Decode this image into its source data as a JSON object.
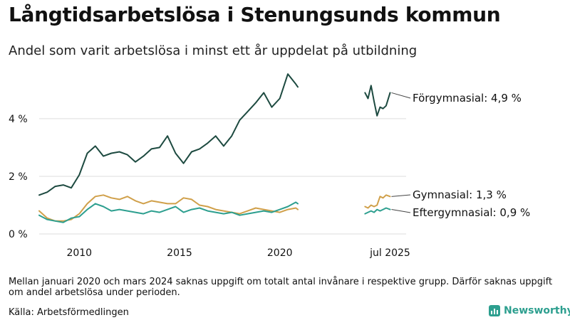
{
  "title": "Långtidsarbetslösa i Stenungsunds kommun",
  "subtitle": "Andel som varit arbetslösa i minst ett år uppdelat på utbildning",
  "note": "Mellan januari 2020 och mars 2024 saknas uppgift om totalt antal invånare i respektive grupp. Därför saknas uppgift om andel arbetslösa under perioden.",
  "source": "Källa: Arbetsförmedlingen",
  "brand": "Newsworthy",
  "colors": {
    "forgymnasial": "#1d4a40",
    "gymnasial": "#d0a04a",
    "eftergymnasial": "#2d9f8f",
    "gridline": "#dddddd",
    "text": "#111111"
  },
  "chart_data": {
    "type": "line",
    "ylim": [
      0,
      5.7
    ],
    "yticks": [
      0,
      2,
      4
    ],
    "ytick_labels": [
      "0 %",
      "2 %",
      "4 %"
    ],
    "xlim": [
      2008.0,
      2026.3
    ],
    "xticks": [
      2010,
      2015,
      2020,
      2025.5
    ],
    "xtick_labels": [
      "2010",
      "2015",
      "2020",
      "jul 2025"
    ],
    "grid": "horizontal",
    "series": [
      {
        "name": "Förgymnasial",
        "label": "Förgymnasial: 4,9 %",
        "color": "#1d4a40",
        "segments": [
          {
            "x": [
              2008.0,
              2008.4,
              2008.8,
              2009.2,
              2009.6,
              2010.0,
              2010.4,
              2010.8,
              2011.2,
              2011.6,
              2012.0,
              2012.4,
              2012.8,
              2013.2,
              2013.6,
              2014.0,
              2014.4,
              2014.8,
              2015.2,
              2015.6,
              2016.0,
              2016.4,
              2016.8,
              2017.2,
              2017.6,
              2018.0,
              2018.4,
              2018.8,
              2019.2,
              2019.6,
              2020.0,
              2020.4,
              2020.8,
              2020.9
            ],
            "y": [
              1.35,
              1.45,
              1.65,
              1.7,
              1.6,
              2.05,
              2.8,
              3.05,
              2.7,
              2.8,
              2.85,
              2.75,
              2.5,
              2.7,
              2.95,
              3.0,
              3.4,
              2.8,
              2.45,
              2.85,
              2.95,
              3.15,
              3.4,
              3.05,
              3.4,
              3.95,
              4.25,
              4.55,
              4.9,
              4.4,
              4.7,
              5.55,
              5.2,
              5.1
            ]
          },
          {
            "x": [
              2024.25,
              2024.4,
              2024.55,
              2024.7,
              2024.85,
              2025.0,
              2025.15,
              2025.3,
              2025.5
            ],
            "y": [
              4.9,
              4.7,
              5.15,
              4.6,
              4.1,
              4.4,
              4.35,
              4.45,
              4.9
            ]
          }
        ]
      },
      {
        "name": "Gymnasial",
        "label": "Gymnasial: 1,3 %",
        "color": "#d0a04a",
        "segments": [
          {
            "x": [
              2008.0,
              2008.4,
              2008.8,
              2009.2,
              2009.6,
              2010.0,
              2010.4,
              2010.8,
              2011.2,
              2011.6,
              2012.0,
              2012.4,
              2012.8,
              2013.2,
              2013.6,
              2014.0,
              2014.4,
              2014.8,
              2015.2,
              2015.6,
              2016.0,
              2016.4,
              2016.8,
              2017.2,
              2017.6,
              2018.0,
              2018.4,
              2018.8,
              2019.2,
              2019.6,
              2020.0,
              2020.4,
              2020.8,
              2020.9
            ],
            "y": [
              0.8,
              0.55,
              0.45,
              0.45,
              0.5,
              0.7,
              1.05,
              1.3,
              1.35,
              1.25,
              1.2,
              1.3,
              1.15,
              1.05,
              1.15,
              1.1,
              1.05,
              1.05,
              1.25,
              1.2,
              1.0,
              0.95,
              0.85,
              0.8,
              0.75,
              0.7,
              0.8,
              0.9,
              0.85,
              0.8,
              0.75,
              0.85,
              0.9,
              0.85
            ]
          },
          {
            "x": [
              2024.25,
              2024.4,
              2024.55,
              2024.7,
              2024.85,
              2025.0,
              2025.15,
              2025.3,
              2025.5
            ],
            "y": [
              0.95,
              0.9,
              1.0,
              0.95,
              1.0,
              1.3,
              1.25,
              1.35,
              1.3
            ]
          }
        ]
      },
      {
        "name": "Eftergymnasial",
        "label": "Eftergymnasial: 0,9 %",
        "color": "#2d9f8f",
        "segments": [
          {
            "x": [
              2008.0,
              2008.4,
              2008.8,
              2009.2,
              2009.6,
              2010.0,
              2010.4,
              2010.8,
              2011.2,
              2011.6,
              2012.0,
              2012.4,
              2012.8,
              2013.2,
              2013.6,
              2014.0,
              2014.4,
              2014.8,
              2015.2,
              2015.6,
              2016.0,
              2016.4,
              2016.8,
              2017.2,
              2017.6,
              2018.0,
              2018.4,
              2018.8,
              2019.2,
              2019.6,
              2020.0,
              2020.4,
              2020.8,
              2020.9
            ],
            "y": [
              0.65,
              0.5,
              0.45,
              0.4,
              0.55,
              0.6,
              0.85,
              1.05,
              0.95,
              0.8,
              0.85,
              0.8,
              0.75,
              0.7,
              0.8,
              0.75,
              0.85,
              0.95,
              0.75,
              0.85,
              0.9,
              0.8,
              0.75,
              0.7,
              0.75,
              0.65,
              0.7,
              0.75,
              0.8,
              0.75,
              0.85,
              0.95,
              1.1,
              1.05
            ]
          },
          {
            "x": [
              2024.25,
              2024.4,
              2024.55,
              2024.7,
              2024.85,
              2025.0,
              2025.15,
              2025.3,
              2025.5
            ],
            "y": [
              0.7,
              0.75,
              0.8,
              0.75,
              0.85,
              0.8,
              0.85,
              0.9,
              0.85
            ]
          }
        ]
      }
    ]
  }
}
